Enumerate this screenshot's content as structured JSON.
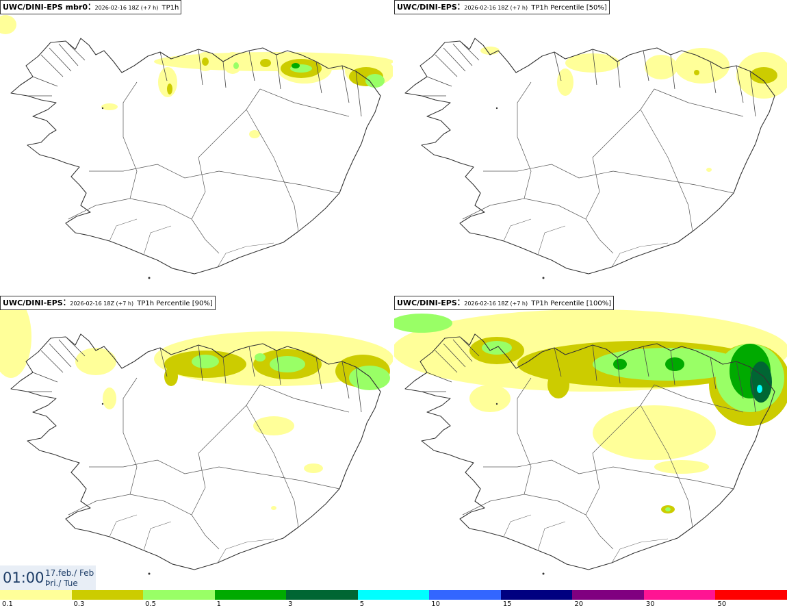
{
  "panels": [
    {
      "model": "UWC/DINI-EPS mbr0",
      "run": "2026-02-16 18Z (+7 h)",
      "field": "TP1h"
    },
    {
      "model": "UWC/DINI-EPS",
      "run": "2026-02-16 18Z (+7 h)",
      "field": "TP1h Percentile [50%]"
    },
    {
      "model": "UWC/DINI-EPS",
      "run": "2026-02-16 18Z (+7 h)",
      "field": "TP1h Percentile [90%]"
    },
    {
      "model": "UWC/DINI-EPS",
      "run": "2026-02-16 18Z (+7 h)",
      "field": "TP1h Percentile [100%]"
    }
  ],
  "valid_time": {
    "time": "01:00",
    "date_line": "17.feb./ Feb",
    "day_line": "Þri./ Tue"
  },
  "colorbar": {
    "colors": [
      "#ffff99",
      "#cccc00",
      "#99ff66",
      "#00aa00",
      "#006633",
      "#00ffff",
      "#3366ff",
      "#000080",
      "#800080",
      "#ff1493",
      "#ff0000"
    ],
    "labels": [
      "0.1",
      "0.3",
      "0.5",
      "1",
      "3",
      "5",
      "10",
      "15",
      "20",
      "30",
      "50"
    ]
  }
}
